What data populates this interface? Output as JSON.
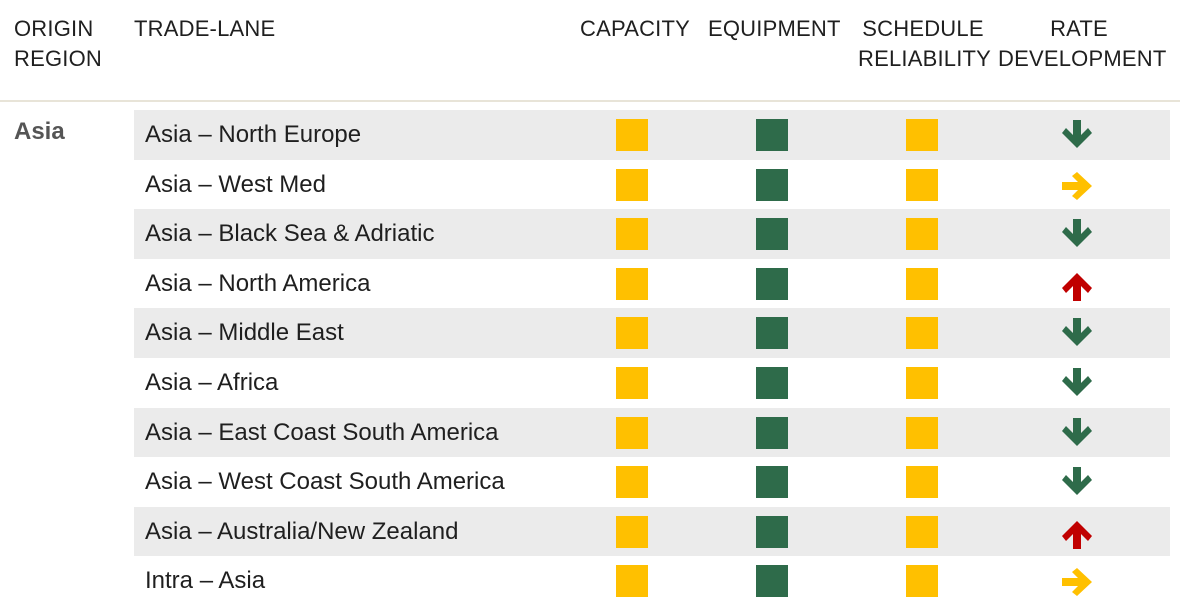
{
  "header": {
    "origin_region": "ORIGIN\nREGION",
    "trade_lane": "TRADE-LANE",
    "capacity": "CAPACITY",
    "equipment": "EQUIPMENT",
    "schedule_reliability": "SCHEDULE\nRELIABILITY",
    "rate_development": "RATE\nDEVELOPMENT"
  },
  "region": "Asia",
  "colors": {
    "amber": "#FFC000",
    "green": "#2E6B4A",
    "red": "#C00000",
    "row_shade": "#EBEBEB"
  },
  "rows": [
    {
      "lane": "Asia – North Europe",
      "capacity": "amber",
      "equipment": "green",
      "schedule_reliability": "amber",
      "rate": "down"
    },
    {
      "lane": "Asia – West Med",
      "capacity": "amber",
      "equipment": "green",
      "schedule_reliability": "amber",
      "rate": "flat"
    },
    {
      "lane": "Asia – Black Sea & Adriatic",
      "capacity": "amber",
      "equipment": "green",
      "schedule_reliability": "amber",
      "rate": "down"
    },
    {
      "lane": "Asia – North America",
      "capacity": "amber",
      "equipment": "green",
      "schedule_reliability": "amber",
      "rate": "up"
    },
    {
      "lane": "Asia – Middle East",
      "capacity": "amber",
      "equipment": "green",
      "schedule_reliability": "amber",
      "rate": "down"
    },
    {
      "lane": "Asia – Africa",
      "capacity": "amber",
      "equipment": "green",
      "schedule_reliability": "amber",
      "rate": "down"
    },
    {
      "lane": "Asia – East Coast South America",
      "capacity": "amber",
      "equipment": "green",
      "schedule_reliability": "amber",
      "rate": "down"
    },
    {
      "lane": "Asia – West Coast South America",
      "capacity": "amber",
      "equipment": "green",
      "schedule_reliability": "amber",
      "rate": "down"
    },
    {
      "lane": "Asia – Australia/New Zealand",
      "capacity": "amber",
      "equipment": "green",
      "schedule_reliability": "amber",
      "rate": "up"
    },
    {
      "lane": "Intra – Asia",
      "capacity": "amber",
      "equipment": "green",
      "schedule_reliability": "amber",
      "rate": "flat"
    }
  ]
}
